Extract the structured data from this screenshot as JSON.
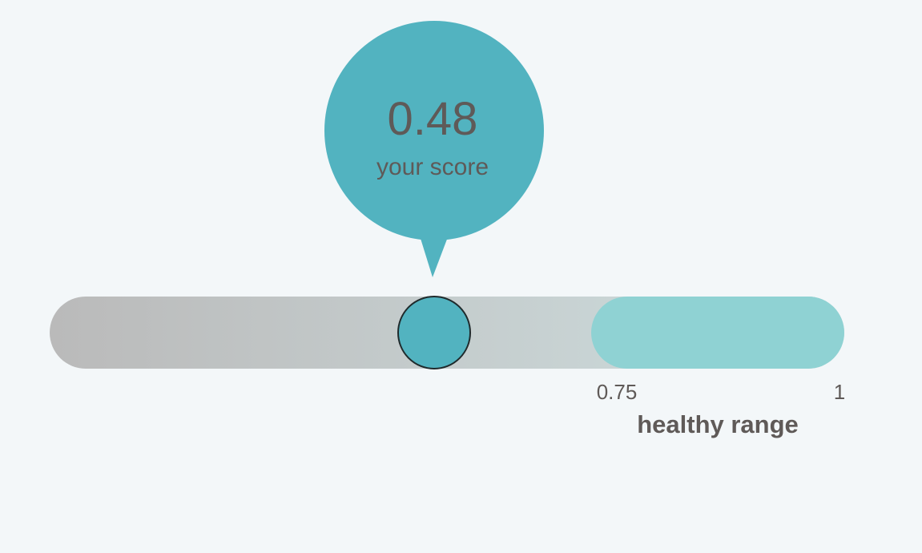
{
  "chart_data": {
    "type": "gauge",
    "score": 0.48,
    "score_label": "your score",
    "range": [
      0,
      1
    ],
    "healthy_range": [
      0.75,
      1
    ],
    "healthy_range_label": "healthy range",
    "tick_labels": [
      "0.75",
      "1"
    ],
    "colors": {
      "accent": "#52b3c0",
      "healthy": "#8fd2d3",
      "track_start": "#bababa",
      "track_end": "#cfdfe0",
      "text": "#5f5a58",
      "background": "#f3f7f9"
    }
  }
}
